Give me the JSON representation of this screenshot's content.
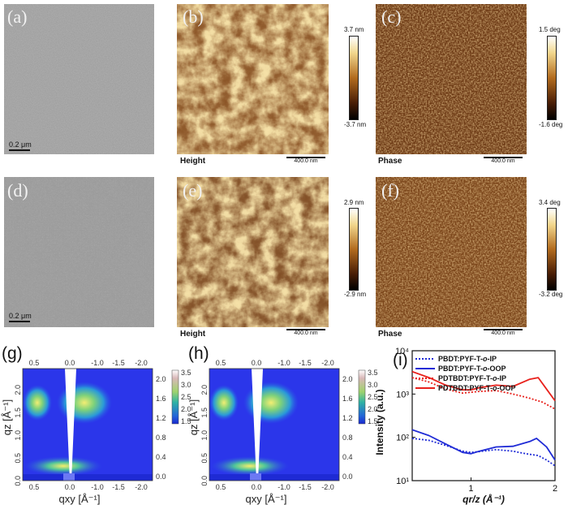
{
  "panels": {
    "a": {
      "label": "(a)",
      "scalebar": "0.2 μm"
    },
    "b": {
      "label": "(b)",
      "caption": "Height",
      "scalebar": "400.0 nm",
      "cbar_max": "3.7 nm",
      "cbar_min": "-3.7 nm"
    },
    "c": {
      "label": "(c)",
      "caption": "Phase",
      "scalebar": "400.0 nm",
      "cbar_max": "1.5 deg",
      "cbar_min": "-1.6 deg"
    },
    "d": {
      "label": "(d)",
      "scalebar": "0.2 μm"
    },
    "e": {
      "label": "(e)",
      "caption": "Height",
      "scalebar": "400.0 nm",
      "cbar_max": "2.9 nm",
      "cbar_min": "-2.9 nm"
    },
    "f": {
      "label": "(f)",
      "caption": "Phase",
      "scalebar": "400.0 nm",
      "cbar_max": "3.4 deg",
      "cbar_min": "-3.2 deg"
    },
    "g": {
      "label": "(g)"
    },
    "h": {
      "label": "(h)"
    },
    "i": {
      "label": "(i)"
    }
  },
  "giwaxs": {
    "top_ticks": [
      "0.5",
      "0.0",
      "-1.0",
      "-1.5",
      "-2.0"
    ],
    "bottom_ticks": [
      "0.5",
      "0.0",
      "-1.0",
      "-1.5",
      "-2.0"
    ],
    "left_ticks": [
      "2.0",
      "1.5",
      "1.0",
      "0.5",
      "0.0"
    ],
    "right_ticks": [
      "2.0",
      "1.6",
      "1.2",
      "0.8",
      "0.4",
      "0.0"
    ],
    "colorbar_ticks": [
      "3.5",
      "3.0",
      "2.5",
      "2.0",
      "1.5"
    ],
    "xlabel": "qxy [Å⁻¹]",
    "ylabel": "qz [Å⁻¹]"
  },
  "chart_data": {
    "type": "line",
    "title": "",
    "xlabel": "qr/z (Å⁻¹)",
    "ylabel": "Intensity (a.u.)",
    "yscale": "log",
    "xlim": [
      0.3,
      2.0
    ],
    "ylim": [
      10,
      10000
    ],
    "xticks": [
      "1",
      "2"
    ],
    "yticks": [
      "10¹",
      "10²",
      "10³",
      "10⁴"
    ],
    "series": [
      {
        "name": "PBDT:PYF-T-o-IP",
        "color": "#1f2bd6",
        "style": "dotted",
        "x": [
          0.3,
          0.5,
          0.7,
          0.9,
          1.0,
          1.1,
          1.3,
          1.5,
          1.65,
          1.8,
          1.9,
          2.0
        ],
        "y": [
          95,
          85,
          65,
          48,
          45,
          47,
          52,
          48,
          42,
          38,
          30,
          22
        ]
      },
      {
        "name": "PBDT:PYF-T-o-OOP",
        "color": "#1f2bd6",
        "style": "solid",
        "x": [
          0.3,
          0.5,
          0.7,
          0.9,
          1.0,
          1.1,
          1.3,
          1.5,
          1.7,
          1.78,
          1.9,
          2.0
        ],
        "y": [
          150,
          110,
          70,
          45,
          42,
          48,
          60,
          62,
          80,
          95,
          60,
          30
        ]
      },
      {
        "name": "PDTBDT:PYF-T-o-IP",
        "color": "#e8201b",
        "style": "dotted",
        "x": [
          0.3,
          0.5,
          0.7,
          0.9,
          1.0,
          1.1,
          1.3,
          1.5,
          1.7,
          1.85,
          2.0
        ],
        "y": [
          2400,
          1900,
          1300,
          1050,
          1100,
          1150,
          1200,
          1000,
          800,
          650,
          450
        ]
      },
      {
        "name": "PDTBDT:PYF-T-o-OOP",
        "color": "#e8201b",
        "style": "solid",
        "x": [
          0.3,
          0.5,
          0.7,
          0.9,
          1.0,
          1.1,
          1.3,
          1.5,
          1.7,
          1.8,
          1.9,
          2.0
        ],
        "y": [
          3300,
          2400,
          1600,
          1250,
          1250,
          1400,
          1600,
          1500,
          2200,
          2400,
          1300,
          700
        ]
      }
    ],
    "legend": [
      {
        "text": "PBDT:PYF-T-",
        "ital": "o",
        "tail": "-IP"
      },
      {
        "text": "PBDT:PYF-T-",
        "ital": "o",
        "tail": "-OOP"
      },
      {
        "text": "PDTBDT:PYF-T-",
        "ital": "o",
        "tail": "-IP"
      },
      {
        "text": "PDTBDT:PYF-T-",
        "ital": "o",
        "tail": "-OOP"
      }
    ]
  }
}
